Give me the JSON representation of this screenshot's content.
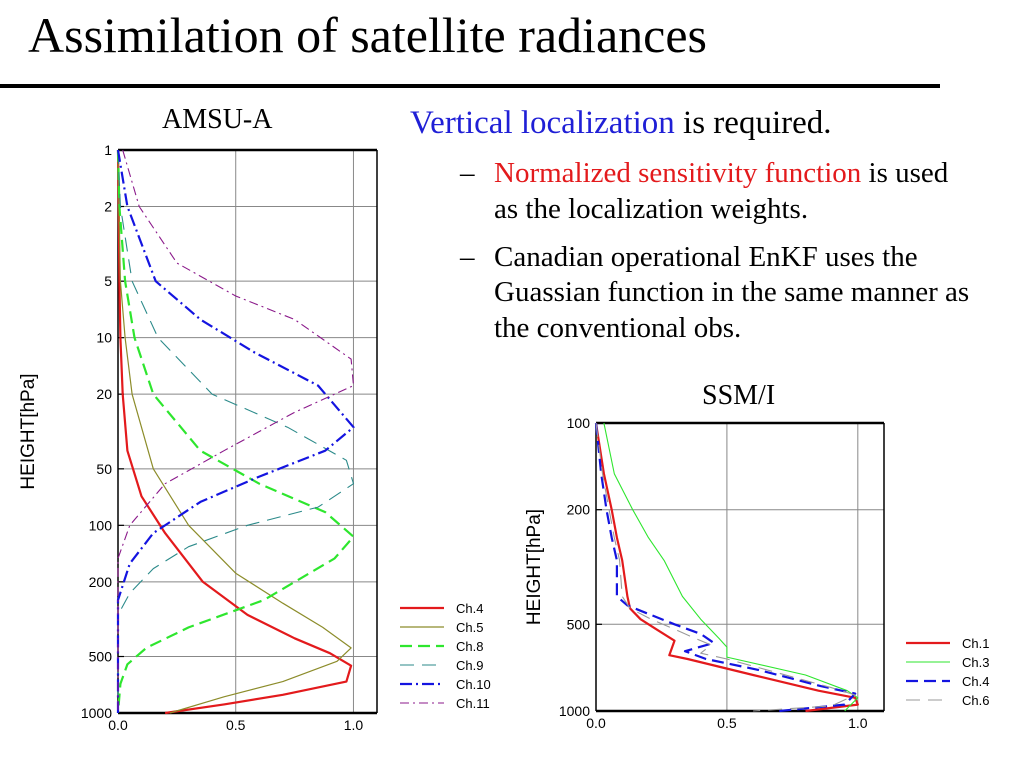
{
  "slide": {
    "title": "Assimilation of satellite radiances",
    "bullet_main_accent": "Vertical localization",
    "bullet_main_rest": " is required.",
    "sub_bullets": [
      {
        "dash": "–",
        "red": "Normalized sensitivity function",
        "rest": " is used as the localization weights."
      },
      {
        "dash": "–",
        "red": "",
        "rest": "Canadian operational EnKF uses the Guassian function in the same manner as the conventional obs."
      }
    ],
    "accent_blue": "#1f1fd6",
    "accent_red": "#e31a1c"
  },
  "chart_data": [
    {
      "type": "line",
      "title": "AMSU-A",
      "xlabel": "",
      "ylabel": "HEIGHT[hPa]",
      "xlim": [
        0,
        1.1
      ],
      "xticks": [
        0.0,
        0.5,
        1.0
      ],
      "xtick_labels": [
        "0.0",
        "0.5",
        "1.0"
      ],
      "ylim": [
        1,
        1000
      ],
      "yscale": "log",
      "yaxis_inverted": true,
      "yticks": [
        1,
        2,
        5,
        10,
        20,
        50,
        100,
        200,
        500,
        1000
      ],
      "ytick_labels": [
        "1",
        "2",
        "5",
        "10",
        "20",
        "50",
        "100",
        "200",
        "500",
        "1000"
      ],
      "grid": true,
      "legend": "bottom-right",
      "series": [
        {
          "name": "Ch.4",
          "color": "#e31a1c",
          "dash": "solid",
          "width": 2.2,
          "points": [
            [
              0.0,
              1
            ],
            [
              0.003,
              2
            ],
            [
              0.006,
              5
            ],
            [
              0.01,
              10
            ],
            [
              0.02,
              20
            ],
            [
              0.04,
              40
            ],
            [
              0.1,
              70
            ],
            [
              0.2,
              110
            ],
            [
              0.36,
              200
            ],
            [
              0.55,
              300
            ],
            [
              0.75,
              400
            ],
            [
              0.9,
              480
            ],
            [
              0.99,
              560
            ],
            [
              0.97,
              680
            ],
            [
              0.7,
              800
            ],
            [
              0.45,
              900
            ],
            [
              0.2,
              1000
            ]
          ]
        },
        {
          "name": "Ch.5",
          "color": "#8c8c2a",
          "dash": "solid",
          "width": 1.2,
          "points": [
            [
              0.0,
              1
            ],
            [
              0.004,
              2
            ],
            [
              0.01,
              5
            ],
            [
              0.03,
              10
            ],
            [
              0.06,
              20
            ],
            [
              0.15,
              50
            ],
            [
              0.3,
              100
            ],
            [
              0.5,
              180
            ],
            [
              0.7,
              260
            ],
            [
              0.87,
              350
            ],
            [
              0.99,
              450
            ],
            [
              0.93,
              530
            ],
            [
              0.7,
              680
            ],
            [
              0.45,
              820
            ],
            [
              0.22,
              1000
            ]
          ]
        },
        {
          "name": "Ch.8",
          "color": "#2ee62e",
          "dash": "dash",
          "width": 2.2,
          "points": [
            [
              0.0,
              1
            ],
            [
              0.006,
              2
            ],
            [
              0.03,
              5
            ],
            [
              0.07,
              10
            ],
            [
              0.15,
              20
            ],
            [
              0.35,
              40
            ],
            [
              0.6,
              60
            ],
            [
              0.88,
              85
            ],
            [
              1.0,
              115
            ],
            [
              0.92,
              150
            ],
            [
              0.62,
              250
            ],
            [
              0.3,
              350
            ],
            [
              0.12,
              450
            ],
            [
              0.04,
              550
            ],
            [
              0.01,
              700
            ],
            [
              0.0,
              1000
            ]
          ]
        },
        {
          "name": "Ch.9",
          "color": "#2b8a8a",
          "dash": "longdash",
          "width": 1.1,
          "points": [
            [
              0.0,
              1
            ],
            [
              0.01,
              2
            ],
            [
              0.06,
              5
            ],
            [
              0.17,
              10
            ],
            [
              0.4,
              20
            ],
            [
              0.72,
              30
            ],
            [
              0.97,
              45
            ],
            [
              1.0,
              60
            ],
            [
              0.85,
              80
            ],
            [
              0.55,
              100
            ],
            [
              0.3,
              130
            ],
            [
              0.15,
              170
            ],
            [
              0.05,
              230
            ],
            [
              0.0,
              300
            ],
            [
              0.0,
              1000
            ]
          ]
        },
        {
          "name": "Ch.10",
          "color": "#1414e0",
          "dash": "dashdot",
          "width": 2.2,
          "points": [
            [
              0.0,
              1
            ],
            [
              0.04,
              2
            ],
            [
              0.16,
              5
            ],
            [
              0.35,
              8
            ],
            [
              0.58,
              12
            ],
            [
              0.85,
              18
            ],
            [
              1.0,
              30
            ],
            [
              0.88,
              40
            ],
            [
              0.6,
              55
            ],
            [
              0.35,
              75
            ],
            [
              0.15,
              110
            ],
            [
              0.05,
              160
            ],
            [
              0.0,
              250
            ],
            [
              0.0,
              1000
            ]
          ]
        },
        {
          "name": "Ch.11",
          "color": "#8b1a8b",
          "dash": "dashdotthin",
          "width": 1.1,
          "points": [
            [
              0.02,
              1
            ],
            [
              0.09,
              2
            ],
            [
              0.25,
              4
            ],
            [
              0.5,
              6
            ],
            [
              0.75,
              8
            ],
            [
              0.99,
              13
            ],
            [
              1.0,
              18
            ],
            [
              0.75,
              25
            ],
            [
              0.45,
              40
            ],
            [
              0.2,
              60
            ],
            [
              0.05,
              100
            ],
            [
              0.0,
              150
            ],
            [
              0.0,
              1000
            ]
          ]
        }
      ]
    },
    {
      "type": "line",
      "title": "SSM/I",
      "xlabel": "",
      "ylabel": "HEIGHT[hPa]",
      "xlim": [
        0,
        1.1
      ],
      "xticks": [
        0.0,
        0.5,
        1.0
      ],
      "xtick_labels": [
        "0.0",
        "0.5",
        "1.0"
      ],
      "ylim": [
        100,
        1000
      ],
      "yscale": "log",
      "yaxis_inverted": true,
      "yticks": [
        100,
        200,
        500,
        1000
      ],
      "ytick_labels": [
        "100",
        "200",
        "500",
        "1000"
      ],
      "grid": true,
      "legend": "bottom-right",
      "series": [
        {
          "name": "Ch.1",
          "color": "#e31a1c",
          "dash": "solid",
          "width": 2.2,
          "points": [
            [
              0.0,
              100
            ],
            [
              0.03,
              150
            ],
            [
              0.06,
              200
            ],
            [
              0.08,
              250
            ],
            [
              0.1,
              300
            ],
            [
              0.12,
              400
            ],
            [
              0.13,
              440
            ],
            [
              0.17,
              480
            ],
            [
              0.23,
              520
            ],
            [
              0.3,
              570
            ],
            [
              0.28,
              640
            ],
            [
              0.35,
              660
            ],
            [
              0.6,
              750
            ],
            [
              0.85,
              850
            ],
            [
              0.99,
              900
            ],
            [
              1.0,
              950
            ],
            [
              0.8,
              1000
            ]
          ]
        },
        {
          "name": "Ch.3",
          "color": "#2ee62e",
          "dash": "solid",
          "width": 1.1,
          "points": [
            [
              0.03,
              100
            ],
            [
              0.07,
              150
            ],
            [
              0.14,
              200
            ],
            [
              0.2,
              250
            ],
            [
              0.26,
              300
            ],
            [
              0.33,
              400
            ],
            [
              0.4,
              480
            ],
            [
              0.47,
              560
            ],
            [
              0.5,
              600
            ],
            [
              0.5,
              650
            ],
            [
              0.8,
              750
            ],
            [
              0.96,
              850
            ],
            [
              1.0,
              900
            ],
            [
              0.95,
              1000
            ]
          ]
        },
        {
          "name": "Ch.4",
          "color": "#1414e0",
          "dash": "dash",
          "width": 2.2,
          "points": [
            [
              0.0,
              100
            ],
            [
              0.02,
              150
            ],
            [
              0.04,
              200
            ],
            [
              0.06,
              250
            ],
            [
              0.08,
              300
            ],
            [
              0.08,
              400
            ],
            [
              0.12,
              430
            ],
            [
              0.2,
              460
            ],
            [
              0.3,
              500
            ],
            [
              0.4,
              540
            ],
            [
              0.45,
              580
            ],
            [
              0.34,
              620
            ],
            [
              0.42,
              660
            ],
            [
              0.62,
              720
            ],
            [
              0.86,
              820
            ],
            [
              0.99,
              870
            ],
            [
              0.95,
              950
            ],
            [
              0.7,
              1000
            ]
          ]
        },
        {
          "name": "Ch.6",
          "color": "#9a9a9a",
          "dash": "longdash",
          "width": 1.1,
          "points": [
            [
              0.0,
              100
            ],
            [
              0.025,
              150
            ],
            [
              0.05,
              200
            ],
            [
              0.07,
              250
            ],
            [
              0.09,
              300
            ],
            [
              0.1,
              400
            ],
            [
              0.13,
              440
            ],
            [
              0.21,
              480
            ],
            [
              0.3,
              520
            ],
            [
              0.38,
              560
            ],
            [
              0.44,
              590
            ],
            [
              0.4,
              630
            ],
            [
              0.5,
              660
            ],
            [
              0.7,
              740
            ],
            [
              0.9,
              830
            ],
            [
              0.99,
              880
            ],
            [
              0.9,
              960
            ],
            [
              0.6,
              1000
            ]
          ]
        }
      ]
    }
  ]
}
